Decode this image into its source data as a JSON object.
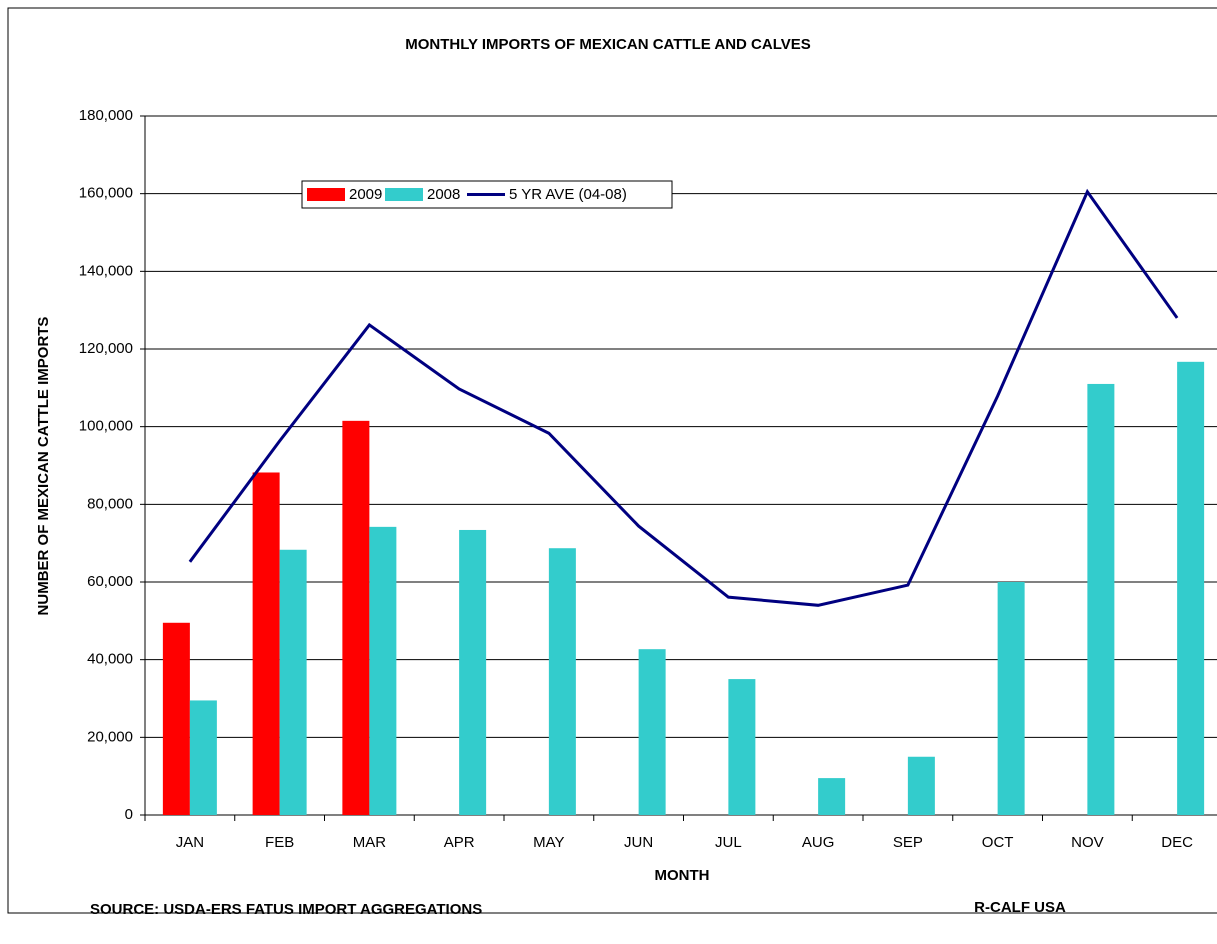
{
  "chart_data": {
    "type": "bar",
    "title": "MONTHLY IMPORTS OF MEXICAN CATTLE AND CALVES",
    "y_label": "NUMBER OF MEXICAN CATTLE IMPORTS",
    "x_label": "MONTH",
    "source": "SOURCE: USDA-ERS FATUS IMPORT AGGREGATIONS",
    "credit": "R-CALF USA",
    "categories": [
      "JAN",
      "FEB",
      "MAR",
      "APR",
      "MAY",
      "JUN",
      "JUL",
      "AUG",
      "SEP",
      "OCT",
      "NOV",
      "DEC"
    ],
    "series": [
      {
        "name": "2009",
        "type": "bar",
        "color": "#ff0000",
        "values": [
          49500,
          88200,
          101500,
          null,
          null,
          null,
          null,
          null,
          null,
          null,
          null,
          null
        ]
      },
      {
        "name": "2008",
        "type": "bar",
        "color": "#33cccc",
        "values": [
          29500,
          68300,
          74200,
          73400,
          68700,
          42700,
          35000,
          9500,
          15000,
          60000,
          111000,
          116700
        ]
      },
      {
        "name": "5 YR AVE (04-08)",
        "type": "line",
        "color": "#000080",
        "values": [
          65200,
          96300,
          126200,
          109700,
          98300,
          74400,
          56100,
          54000,
          59200,
          107900,
          160500,
          128000
        ]
      }
    ],
    "ylim": [
      0,
      180000
    ],
    "yticks": [
      0,
      {
        "value": 20000,
        "label": "20,000"
      },
      {
        "value": 40000,
        "label": "40,000"
      },
      {
        "value": 60000,
        "label": "60,000"
      },
      {
        "value": 80000,
        "label": "80,000"
      },
      {
        "value": 100000,
        "label": "100,000"
      },
      {
        "value": 120000,
        "label": "120,000"
      },
      {
        "value": 140000,
        "label": "140,000"
      },
      {
        "value": 160000,
        "label": "160,000"
      },
      {
        "value": 180000,
        "label": "180,000"
      }
    ],
    "grid": true
  }
}
